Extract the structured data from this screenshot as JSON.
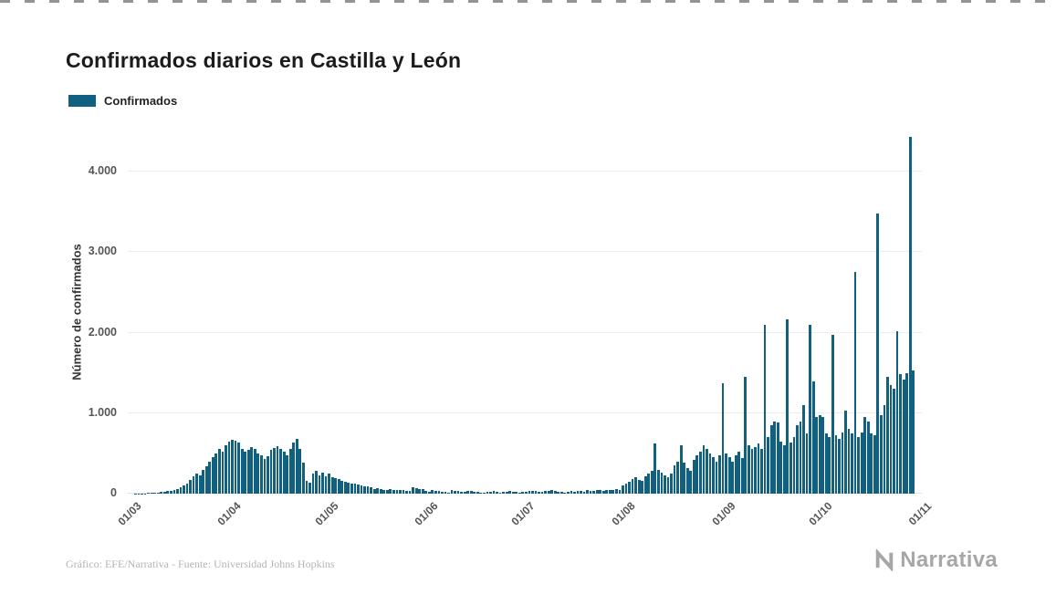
{
  "page": {
    "title": "Confirmados diarios en Castilla y León",
    "footer_source": "Gráfico: EFE/Narrativa - Fuente: Universidad Johns Hopkins",
    "brand": "Narrativa"
  },
  "legend": {
    "label": "Confirmados"
  },
  "chart_data": {
    "type": "bar",
    "title": "Confirmados diarios en Castilla y León",
    "xlabel": "",
    "ylabel": "Número de confirmados",
    "legend_entries": [
      "Confirmados"
    ],
    "legend_position": "top-left",
    "grid": "horizontal",
    "bar_color": "#11607f",
    "ylim": [
      0,
      4500
    ],
    "ytick_values": [
      0,
      1000,
      2000,
      3000,
      4000
    ],
    "ytick_labels": [
      "0",
      "1.000",
      "2.000",
      "3.000",
      "4.000"
    ],
    "xtick_labels": [
      "01/03",
      "01/04",
      "01/05",
      "01/06",
      "01/07",
      "01/08",
      "01/09",
      "01/10",
      "01/11"
    ],
    "xtick_day_index": [
      0,
      31,
      61,
      92,
      122,
      153,
      184,
      214,
      245
    ],
    "series": [
      {
        "name": "Confirmados",
        "values": [
          0,
          0,
          1,
          2,
          3,
          5,
          8,
          10,
          12,
          14,
          20,
          28,
          35,
          30,
          45,
          60,
          80,
          100,
          130,
          170,
          210,
          250,
          230,
          290,
          340,
          400,
          450,
          500,
          560,
          520,
          600,
          650,
          670,
          660,
          630,
          560,
          520,
          540,
          580,
          550,
          500,
          480,
          430,
          460,
          540,
          570,
          590,
          560,
          520,
          480,
          550,
          640,
          680,
          560,
          380,
          160,
          140,
          250,
          280,
          230,
          260,
          220,
          250,
          200,
          190,
          180,
          160,
          150,
          140,
          130,
          120,
          110,
          100,
          95,
          90,
          85,
          60,
          70,
          55,
          50,
          45,
          60,
          50,
          40,
          45,
          40,
          35,
          30,
          80,
          70,
          60,
          55,
          30,
          20,
          45,
          35,
          30,
          25,
          20,
          15,
          40,
          35,
          30,
          25,
          20,
          30,
          35,
          25,
          20,
          15,
          10,
          20,
          25,
          30,
          20,
          15,
          25,
          20,
          30,
          25,
          20,
          15,
          20,
          25,
          30,
          35,
          30,
          25,
          20,
          30,
          35,
          40,
          30,
          25,
          20,
          15,
          25,
          30,
          20,
          35,
          30,
          25,
          40,
          35,
          30,
          45,
          40,
          35,
          50,
          45,
          40,
          55,
          50,
          100,
          120,
          150,
          180,
          200,
          170,
          160,
          220,
          250,
          280,
          620,
          300,
          260,
          230,
          200,
          250,
          350,
          400,
          600,
          380,
          320,
          280,
          420,
          480,
          520,
          600,
          560,
          500,
          450,
          400,
          480,
          1370,
          500,
          450,
          400,
          480,
          520,
          440,
          1450,
          600,
          560,
          580,
          620,
          560,
          2100,
          700,
          850,
          900,
          880,
          650,
          600,
          2160,
          640,
          700,
          850,
          900,
          1100,
          750,
          2100,
          1400,
          950,
          970,
          950,
          750,
          700,
          1970,
          720,
          680,
          760,
          1030,
          800,
          750,
          2760,
          700,
          760,
          950,
          900,
          750,
          720,
          3480,
          980,
          1100,
          1450,
          1350,
          1300,
          2020,
          1480,
          1420,
          1500,
          4430,
          1530,
          0,
          0
        ]
      }
    ]
  }
}
